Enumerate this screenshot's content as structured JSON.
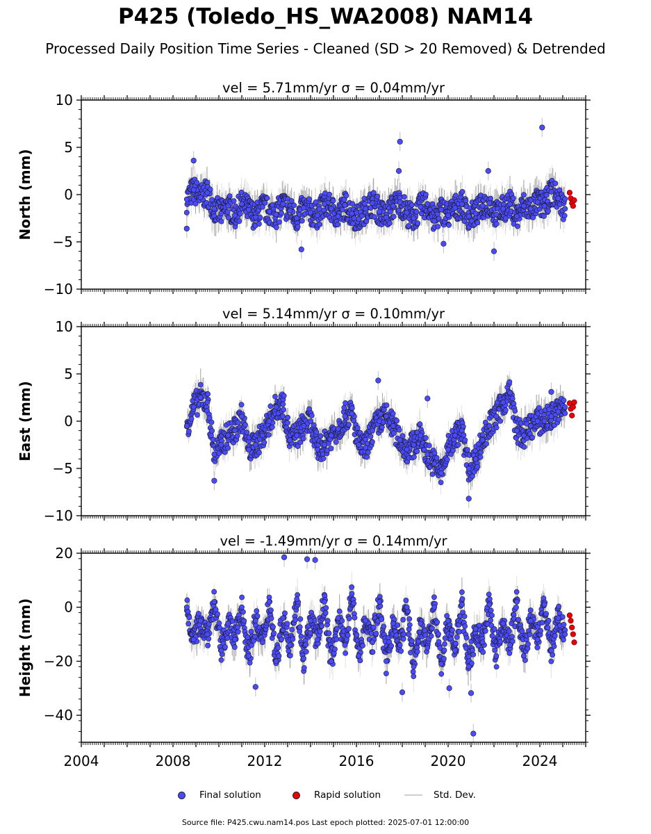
{
  "header": {
    "title": "P425 (Toledo_HS_WA2008) NAM14",
    "subtitle": "Processed Daily Position Time Series - Cleaned (SD > 20 Removed) & Detrended"
  },
  "legend": {
    "final": "Final solution",
    "rapid": "Rapid solution",
    "stddev": "Std. Dev."
  },
  "footer": {
    "source": "Source file: P425.cwu.nam14.pos  Last epoch plotted: 2025-07-01 12:00:00"
  },
  "colors": {
    "final": "#4a4aff",
    "rapid": "#e8000b",
    "stddev": "#c8c8c8",
    "marker_edge": "#1a1a1a"
  },
  "chart_data": [
    {
      "type": "scatter",
      "title": "vel = 5.71mm/yr   σ = 0.04mm/yr",
      "ylabel": "North (mm)",
      "xlim": [
        2004,
        2026
      ],
      "ylim": [
        -10,
        10
      ],
      "yticks": [
        -10,
        -5,
        0,
        5,
        10
      ],
      "xticks": [
        2004,
        2008,
        2012,
        2016,
        2020,
        2024
      ],
      "show_xticklabels": false,
      "grid": false,
      "series": [
        {
          "name": "Final solution",
          "x": [
            2008.6,
            2008.9,
            2009.2,
            2009.5,
            2009.8,
            2010.1,
            2010.4,
            2010.7,
            2011.0,
            2011.3,
            2011.6,
            2011.9,
            2012.2,
            2012.5,
            2012.8,
            2013.1,
            2013.4,
            2013.7,
            2014.0,
            2014.3,
            2014.6,
            2014.9,
            2015.2,
            2015.5,
            2015.8,
            2016.1,
            2016.4,
            2016.7,
            2017.0,
            2017.3,
            2017.6,
            2017.9,
            2018.2,
            2018.5,
            2018.8,
            2019.1,
            2019.4,
            2019.7,
            2020.0,
            2020.3,
            2020.6,
            2020.9,
            2021.2,
            2021.5,
            2021.8,
            2022.1,
            2022.4,
            2022.7,
            2023.0,
            2023.3,
            2023.6,
            2023.9,
            2024.2,
            2024.5,
            2024.8,
            2025.1
          ],
          "y": [
            -0.5,
            0.5,
            -0.3,
            0.2,
            -1.5,
            -2.0,
            -1.2,
            -2.2,
            -1.0,
            -1.6,
            -2.4,
            -1.3,
            -1.8,
            -2.1,
            -1.0,
            -1.7,
            -2.5,
            -1.4,
            -1.9,
            -2.2,
            -1.0,
            -1.5,
            -2.3,
            -1.1,
            -2.0,
            -2.6,
            -1.5,
            -0.9,
            -1.8,
            -2.4,
            -1.2,
            -0.8,
            -1.9,
            -2.5,
            -1.3,
            -1.0,
            -2.8,
            -1.6,
            -2.2,
            -1.4,
            -1.0,
            -2.3,
            -2.0,
            -1.2,
            -0.9,
            -2.1,
            -1.5,
            -1.0,
            -2.3,
            -1.2,
            -1.5,
            -0.8,
            -1.2,
            0.3,
            -0.4,
            -1.5
          ],
          "outliers_x": [
            2008.6,
            2008.9,
            2013.6,
            2017.85,
            2017.9,
            2019.8,
            2021.75,
            2022.0,
            2024.1
          ],
          "outliers_y": [
            -3.6,
            3.6,
            -5.8,
            2.5,
            5.6,
            -5.2,
            2.5,
            -6.0,
            7.1
          ]
        },
        {
          "name": "Rapid solution",
          "x": [
            2025.3,
            2025.35,
            2025.4,
            2025.45,
            2025.5
          ],
          "y": [
            0.2,
            -0.4,
            -0.9,
            -1.2,
            -0.6
          ]
        }
      ]
    },
    {
      "type": "scatter",
      "title": "vel = 5.14mm/yr   σ = 0.10mm/yr",
      "ylabel": "East (mm)",
      "xlim": [
        2004,
        2026
      ],
      "ylim": [
        -10,
        10
      ],
      "yticks": [
        -10,
        -5,
        0,
        5,
        10
      ],
      "xticks": [
        2004,
        2008,
        2012,
        2016,
        2020,
        2024
      ],
      "show_xticklabels": false,
      "grid": false,
      "series": [
        {
          "name": "Final solution",
          "x": [
            2008.6,
            2008.9,
            2009.2,
            2009.5,
            2009.8,
            2010.1,
            2010.4,
            2010.7,
            2011.0,
            2011.3,
            2011.6,
            2011.9,
            2012.2,
            2012.5,
            2012.8,
            2013.1,
            2013.4,
            2013.7,
            2014.0,
            2014.3,
            2014.6,
            2014.9,
            2015.2,
            2015.5,
            2015.8,
            2016.1,
            2016.4,
            2016.7,
            2017.0,
            2017.3,
            2017.6,
            2017.9,
            2018.2,
            2018.5,
            2018.8,
            2019.1,
            2019.4,
            2019.7,
            2020.0,
            2020.3,
            2020.6,
            2020.9,
            2021.2,
            2021.5,
            2021.8,
            2022.1,
            2022.4,
            2022.7,
            2023.0,
            2023.3,
            2023.6,
            2023.9,
            2024.2,
            2024.5,
            2024.8,
            2025.1
          ],
          "y": [
            -0.5,
            1.5,
            2.5,
            2.0,
            -3.5,
            -2.5,
            -1.5,
            -1.0,
            0.5,
            -3.0,
            -2.5,
            -1.5,
            0.0,
            1.5,
            1.8,
            -2.0,
            -1.5,
            -0.5,
            0.0,
            -3.0,
            -2.5,
            -1.5,
            -0.8,
            0.5,
            0.8,
            -2.5,
            -2.8,
            -1.0,
            0.0,
            0.5,
            -0.5,
            -2.0,
            -3.0,
            -2.5,
            -1.5,
            -3.5,
            -4.5,
            -5.5,
            -3.0,
            -1.5,
            -1.0,
            -5.0,
            -4.0,
            -2.0,
            -0.5,
            0.5,
            2.0,
            3.0,
            -1.0,
            -1.5,
            -0.5,
            0.0,
            0.0,
            0.5,
            1.0,
            1.5
          ],
          "outliers_x": [
            2009.8,
            2016.95,
            2019.1,
            2020.9,
            2024.5
          ],
          "outliers_y": [
            -6.3,
            4.3,
            2.4,
            -8.2,
            3.1
          ]
        },
        {
          "name": "Rapid solution",
          "x": [
            2025.3,
            2025.35,
            2025.4,
            2025.45,
            2025.5
          ],
          "y": [
            1.9,
            1.3,
            0.6,
            1.5,
            2.0
          ]
        }
      ]
    },
    {
      "type": "scatter",
      "title": "vel = -1.49mm/yr   σ = 0.14mm/yr",
      "ylabel": "Height (mm)",
      "xlim": [
        2004,
        2026
      ],
      "ylim": [
        -50,
        20
      ],
      "yticks": [
        -40,
        -20,
        0,
        20
      ],
      "xticks": [
        2004,
        2008,
        2012,
        2016,
        2020,
        2024
      ],
      "xticklabels": [
        "2004",
        "2008",
        "2012",
        "2016",
        "2020",
        "2024"
      ],
      "show_xticklabels": true,
      "grid": false,
      "series": [
        {
          "name": "Final solution",
          "x": [
            2008.6,
            2008.9,
            2009.2,
            2009.5,
            2009.8,
            2010.1,
            2010.4,
            2010.7,
            2011.0,
            2011.3,
            2011.6,
            2011.9,
            2012.2,
            2012.5,
            2012.8,
            2013.1,
            2013.4,
            2013.7,
            2014.0,
            2014.3,
            2014.6,
            2014.9,
            2015.2,
            2015.5,
            2015.8,
            2016.1,
            2016.4,
            2016.7,
            2017.0,
            2017.3,
            2017.6,
            2017.9,
            2018.2,
            2018.5,
            2018.8,
            2019.1,
            2019.4,
            2019.7,
            2020.0,
            2020.3,
            2020.6,
            2020.9,
            2021.2,
            2021.5,
            2021.8,
            2022.1,
            2022.4,
            2022.7,
            2023.0,
            2023.3,
            2023.6,
            2023.9,
            2024.2,
            2024.5,
            2024.8,
            2025.1
          ],
          "y": [
            0.0,
            -12.0,
            -5.0,
            -10.0,
            2.0,
            -16.0,
            -6.0,
            -12.0,
            0.0,
            -18.0,
            -5.0,
            -13.0,
            2.0,
            -20.0,
            -4.0,
            -14.0,
            3.0,
            -19.0,
            -5.0,
            -12.0,
            2.0,
            -20.0,
            -4.0,
            -14.0,
            5.0,
            -18.0,
            -5.0,
            -13.0,
            2.0,
            -20.0,
            -6.0,
            -14.0,
            0.0,
            -22.0,
            -6.0,
            -15.0,
            0.0,
            -21.0,
            -5.0,
            -16.0,
            1.0,
            -22.0,
            -8.0,
            -13.0,
            1.0,
            -18.0,
            -6.0,
            -14.0,
            2.0,
            -18.0,
            -5.0,
            -12.0,
            1.0,
            -16.0,
            -4.0,
            -10.0
          ],
          "outliers_x": [
            2011.6,
            2012.85,
            2013.85,
            2014.2,
            2018.0,
            2020.05,
            2021.0,
            2021.1
          ],
          "outliers_y": [
            -29.5,
            18.5,
            17.8,
            17.5,
            -31.5,
            -30.0,
            -31.8,
            -46.8
          ]
        },
        {
          "name": "Rapid solution",
          "x": [
            2025.3,
            2025.35,
            2025.4,
            2025.45,
            2025.5
          ],
          "y": [
            -3.0,
            -5.0,
            -7.5,
            -10.0,
            -13.0
          ]
        }
      ]
    }
  ]
}
